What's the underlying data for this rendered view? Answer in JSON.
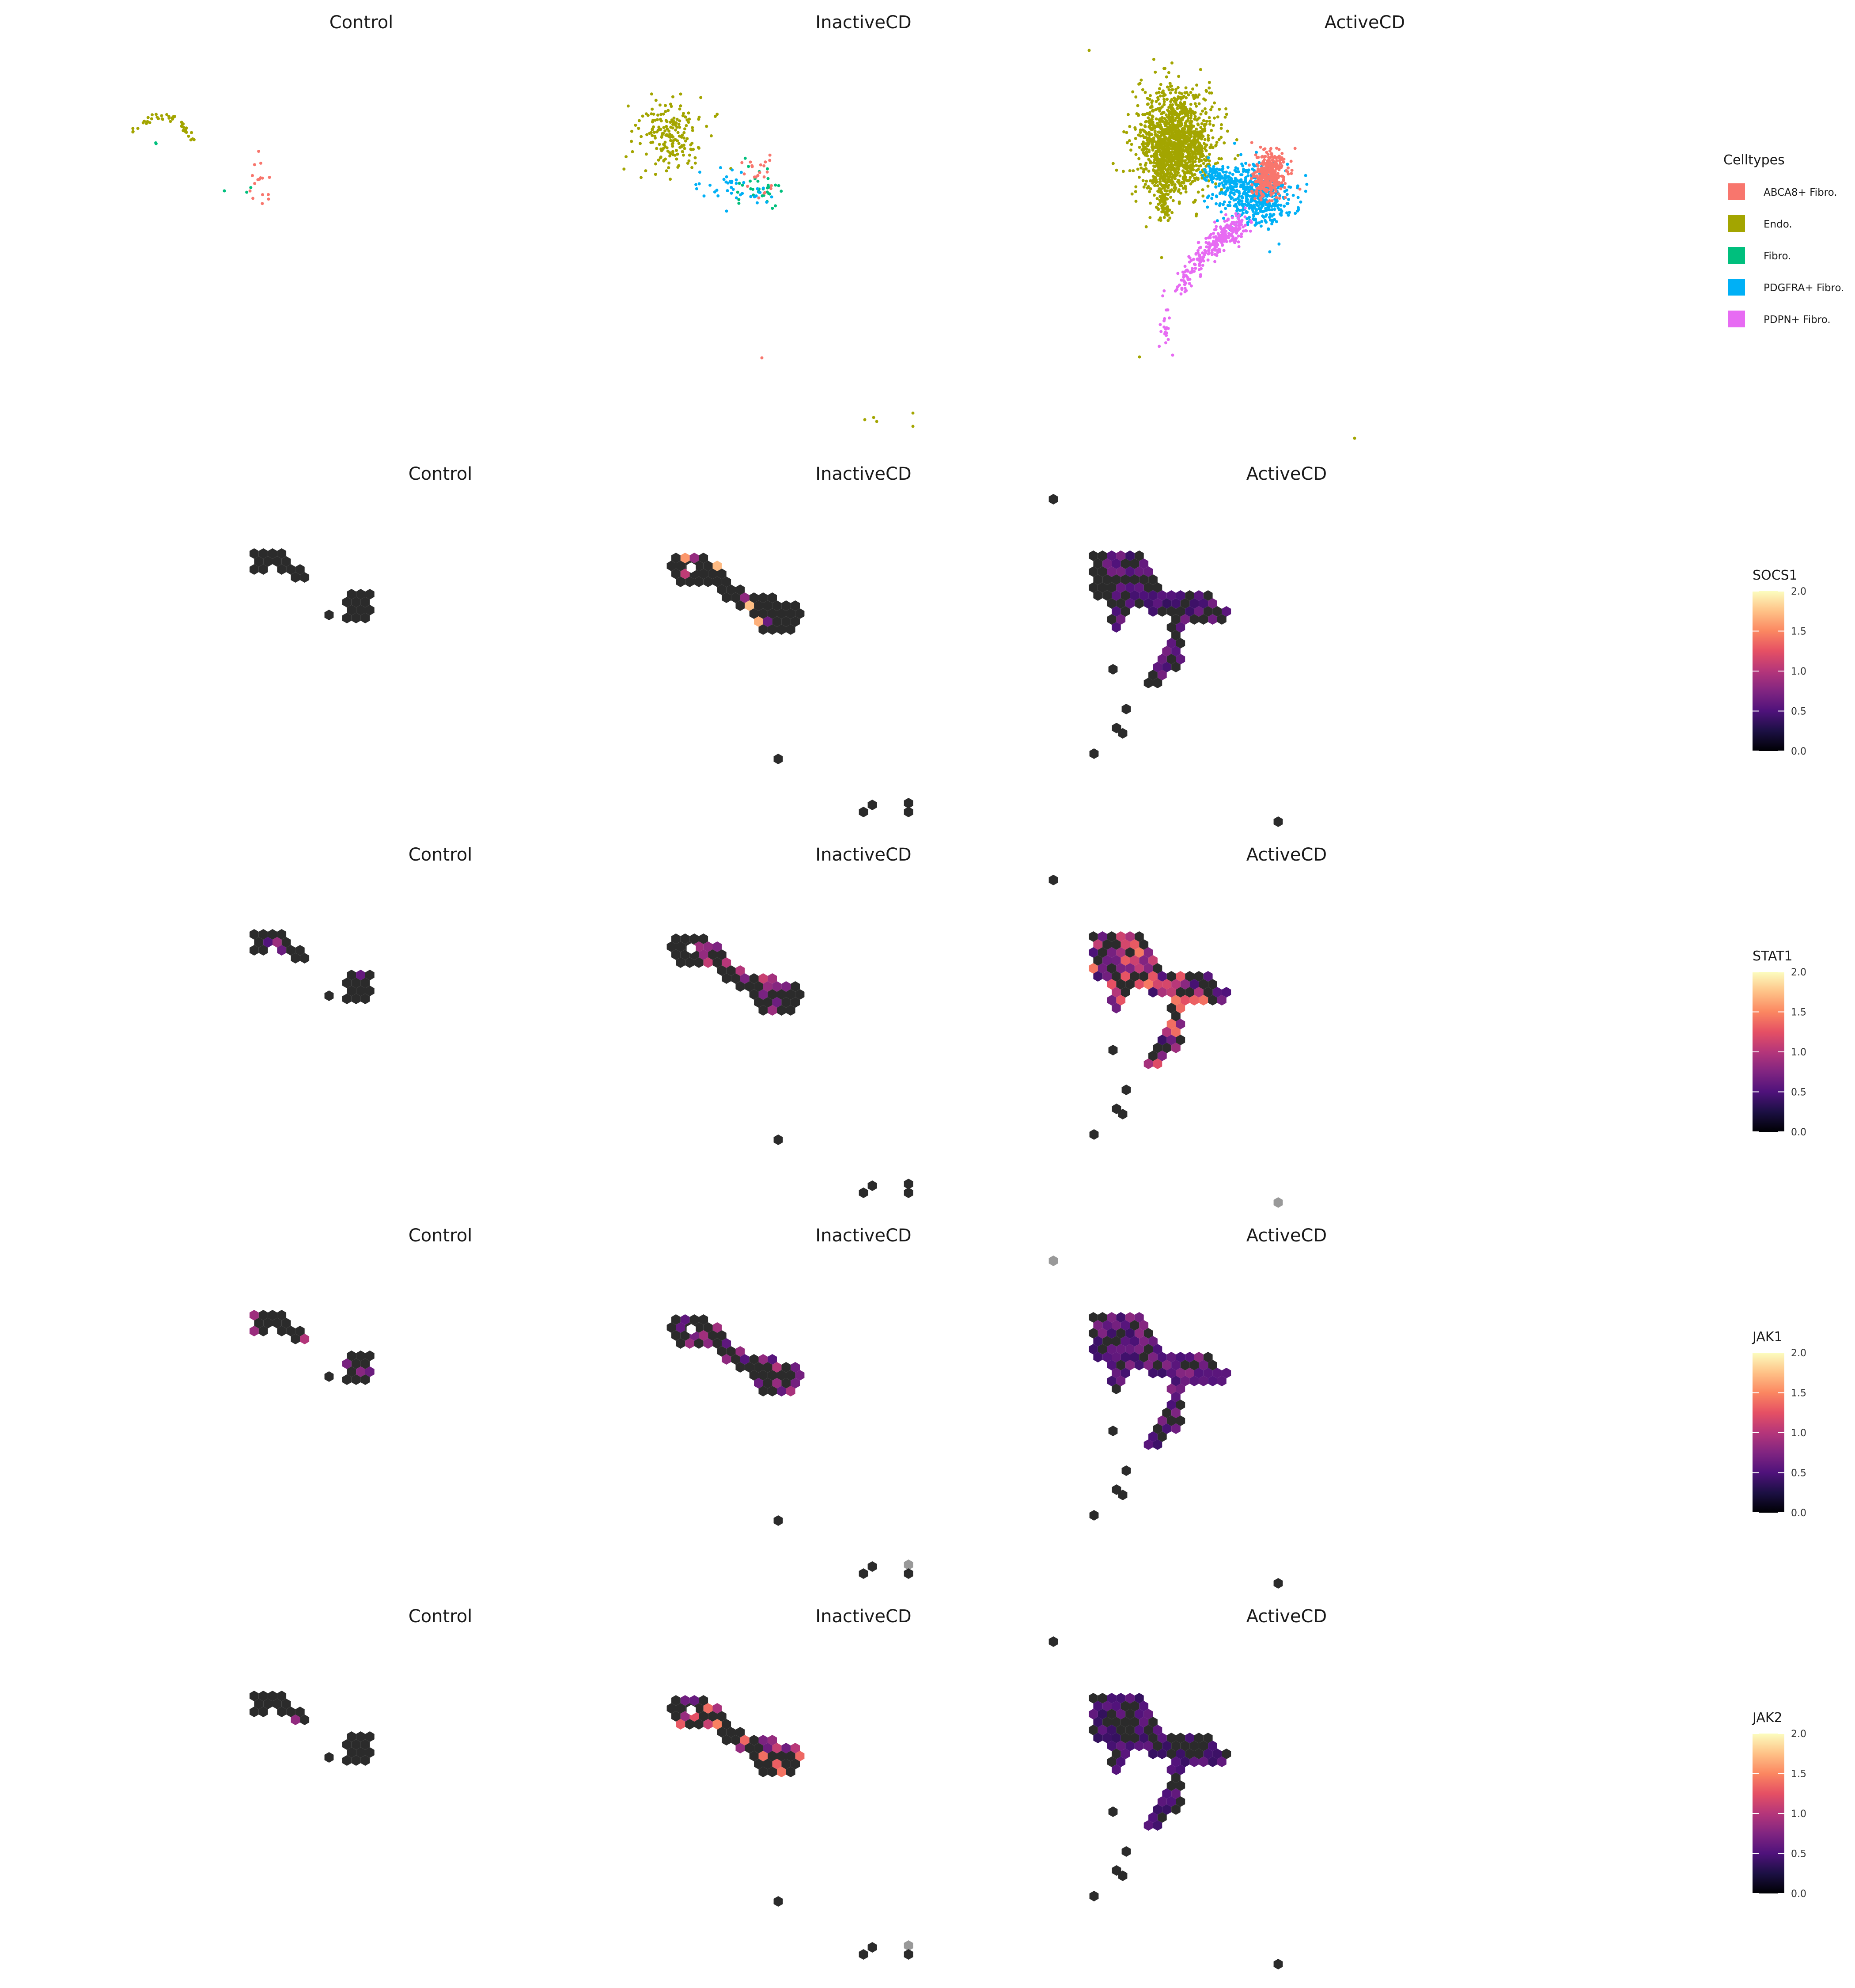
{
  "figure": {
    "conditions": [
      "Control",
      "InactiveCD",
      "ActiveCD"
    ]
  },
  "chart_data": [
    {
      "type": "scatter",
      "description_of_panel": "UMAP by condition, coloured by cell type",
      "legend": {
        "title": "Celltypes",
        "entries": [
          {
            "label": "ABCA8+ Fibro.",
            "color": "#f8766d"
          },
          {
            "label": "Endo.",
            "color": "#a3a500"
          },
          {
            "label": "Fibro.",
            "color": "#00bf7d"
          },
          {
            "label": "PDGFRA+ Fibro.",
            "color": "#00b0f6"
          },
          {
            "label": "PDPN+ Fibro.",
            "color": "#e76bf3"
          }
        ]
      },
      "panels": [
        {
          "title": "Control"
        },
        {
          "title": "InactiveCD"
        },
        {
          "title": "ActiveCD"
        }
      ],
      "grid": false,
      "axes_shown": false
    },
    {
      "type": "heatmap",
      "subtype": "hexbin",
      "gene": "SOCS1",
      "legend": {
        "title": "SOCS1",
        "ticks": [
          "0.0",
          "0.5",
          "1.0",
          "1.5",
          "2.0"
        ],
        "range": [
          0,
          2
        ],
        "palette": "magma"
      },
      "panels": [
        {
          "title": "Control"
        },
        {
          "title": "InactiveCD"
        },
        {
          "title": "ActiveCD"
        }
      ]
    },
    {
      "type": "heatmap",
      "subtype": "hexbin",
      "gene": "STAT1",
      "legend": {
        "title": "STAT1",
        "ticks": [
          "0.0",
          "0.5",
          "1.0",
          "1.5",
          "2.0"
        ],
        "range": [
          0,
          2
        ],
        "palette": "magma"
      },
      "panels": [
        {
          "title": "Control"
        },
        {
          "title": "InactiveCD"
        },
        {
          "title": "ActiveCD"
        }
      ]
    },
    {
      "type": "heatmap",
      "subtype": "hexbin",
      "gene": "JAK1",
      "legend": {
        "title": "JAK1",
        "ticks": [
          "0.0",
          "0.5",
          "1.0",
          "1.5",
          "2.0"
        ],
        "range": [
          0,
          2
        ],
        "palette": "magma"
      },
      "panels": [
        {
          "title": "Control"
        },
        {
          "title": "InactiveCD"
        },
        {
          "title": "ActiveCD"
        }
      ]
    },
    {
      "type": "heatmap",
      "subtype": "hexbin",
      "gene": "JAK2",
      "legend": {
        "title": "JAK2",
        "ticks": [
          "0.0",
          "0.5",
          "1.0",
          "1.5",
          "2.0"
        ],
        "range": [
          0,
          2
        ],
        "palette": "magma"
      },
      "panels": [
        {
          "title": "Control"
        },
        {
          "title": "InactiveCD"
        },
        {
          "title": "ActiveCD"
        }
      ]
    }
  ]
}
